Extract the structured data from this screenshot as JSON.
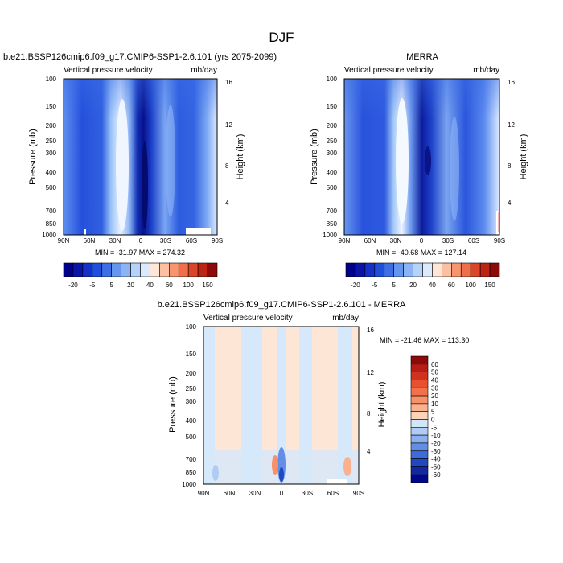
{
  "page_title": "DJF",
  "chart_data": [
    {
      "type": "heatmap",
      "title": "b.e21.BSSP126cmip6.f09_g17.CMIP6-SSP1-2.6.101 (yrs 2075-2099)",
      "subtitle_left": "Vertical pressure velocity",
      "subtitle_right": "mb/day",
      "xlabel": "",
      "ylabel": "Pressure (mb)",
      "ylabel_right": "Height (km)",
      "x_ticks": [
        "90N",
        "60N",
        "30N",
        "0",
        "30S",
        "60S",
        "90S"
      ],
      "y_ticks": [
        100,
        150,
        200,
        250,
        300,
        400,
        500,
        700,
        850,
        1000
      ],
      "y_right_ticks": [
        4,
        8,
        12,
        16
      ],
      "ylim": [
        1000,
        100
      ],
      "y_scale": "log",
      "stats": "MIN = -31.97  MAX = 274.32",
      "contour_levels": [
        -20,
        -5,
        5,
        20,
        40,
        60,
        100,
        150
      ],
      "colorbar_labels": [
        "-20",
        "-5",
        "5",
        "20",
        "40",
        "60",
        "100",
        "150"
      ],
      "colorbar_colors": [
        "#00008b",
        "#0a14a8",
        "#1432c8",
        "#1e50dc",
        "#3c6ee6",
        "#6496f0",
        "#8cb4f5",
        "#b4d2fa",
        "#dceaff",
        "#ffe6d6",
        "#fcbfa0",
        "#f7966e",
        "#f06e4a",
        "#dc4628",
        "#bc2414",
        "#8c0a0a"
      ],
      "colorbar_position": "bottom"
    },
    {
      "type": "heatmap",
      "title": "MERRA",
      "subtitle_left": "Vertical pressure velocity",
      "subtitle_right": "mb/day",
      "xlabel": "",
      "ylabel": "Pressure (mb)",
      "ylabel_right": "Height (km)",
      "x_ticks": [
        "90N",
        "60N",
        "30N",
        "0",
        "30S",
        "60S",
        "90S"
      ],
      "y_ticks": [
        100,
        150,
        200,
        250,
        300,
        400,
        500,
        700,
        850,
        1000
      ],
      "y_right_ticks": [
        4,
        8,
        12,
        16
      ],
      "ylim": [
        1000,
        100
      ],
      "y_scale": "log",
      "stats": "MIN = -40.68  MAX = 127.14",
      "contour_levels": [
        -20,
        -5,
        5,
        20,
        40,
        60,
        100,
        150
      ],
      "colorbar_labels": [
        "-20",
        "-5",
        "5",
        "20",
        "40",
        "60",
        "100",
        "150"
      ],
      "colorbar_colors": [
        "#00008b",
        "#0a14a8",
        "#1432c8",
        "#1e50dc",
        "#3c6ee6",
        "#6496f0",
        "#8cb4f5",
        "#b4d2fa",
        "#dceaff",
        "#ffe6d6",
        "#fcbfa0",
        "#f7966e",
        "#f06e4a",
        "#dc4628",
        "#bc2414",
        "#8c0a0a"
      ],
      "colorbar_position": "bottom"
    },
    {
      "type": "heatmap",
      "title": "b.e21.BSSP126cmip6.f09_g17.CMIP6-SSP1-2.6.101 - MERRA",
      "subtitle_left": "Vertical pressure velocity",
      "subtitle_right": "mb/day",
      "xlabel": "",
      "ylabel": "Pressure (mb)",
      "ylabel_right": "Height (km)",
      "x_ticks": [
        "90N",
        "60N",
        "30N",
        "0",
        "30S",
        "60S",
        "90S"
      ],
      "y_ticks": [
        100,
        150,
        200,
        250,
        300,
        400,
        500,
        700,
        850,
        1000
      ],
      "y_right_ticks": [
        4,
        8,
        12,
        16
      ],
      "ylim": [
        1000,
        100
      ],
      "y_scale": "log",
      "stats": "MIN = -21.46  MAX = 113.30",
      "contour_levels": [
        -60,
        -50,
        -40,
        -30,
        -20,
        -10,
        -5,
        0,
        5,
        10,
        20,
        30,
        40,
        50,
        60
      ],
      "colorbar_labels": [
        "60",
        "50",
        "40",
        "30",
        "20",
        "10",
        "5",
        "0",
        "-5",
        "-10",
        "-20",
        "-30",
        "-40",
        "-50",
        "-60"
      ],
      "colorbar_colors": [
        "#8c0a0a",
        "#b41e14",
        "#d03220",
        "#e8502e",
        "#f47048",
        "#f89068",
        "#fbb08e",
        "#fdd2b8",
        "#d2e6fa",
        "#b0ccf4",
        "#8cb0ee",
        "#648ee6",
        "#3c6cdc",
        "#2048c0",
        "#1228a0",
        "#00088a"
      ],
      "colorbar_position": "right"
    }
  ]
}
